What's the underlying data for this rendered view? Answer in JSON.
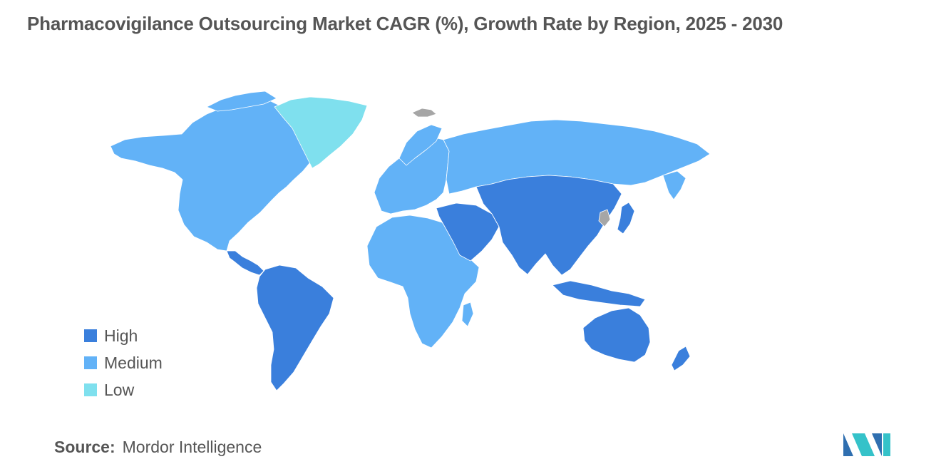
{
  "title": "Pharmacovigilance Outsourcing Market CAGR (%), Growth Rate by Region, 2025 - 2030",
  "colors": {
    "high": "#3a7fdc",
    "medium": "#62b2f7",
    "low": "#7fe0ee",
    "no_data": "#a6a6a6",
    "text": "#555555",
    "logo_dark": "#2f6fb0",
    "logo_light": "#35c2c9"
  },
  "legend": {
    "items": [
      {
        "label": "High",
        "color": "#3a7fdc"
      },
      {
        "label": "Medium",
        "color": "#62b2f7"
      },
      {
        "label": "Low",
        "color": "#7fe0ee"
      }
    ]
  },
  "map_data": {
    "type": "choropleth",
    "regions": [
      {
        "name": "North America",
        "level": "Medium"
      },
      {
        "name": "Greenland",
        "level": "Low"
      },
      {
        "name": "Europe",
        "level": "Medium"
      },
      {
        "name": "Russia",
        "level": "Medium"
      },
      {
        "name": "Africa",
        "level": "Medium"
      },
      {
        "name": "South America",
        "level": "High"
      },
      {
        "name": "Central America",
        "level": "High"
      },
      {
        "name": "Middle East",
        "level": "High"
      },
      {
        "name": "Asia",
        "level": "High"
      },
      {
        "name": "Japan",
        "level": "High"
      },
      {
        "name": "Australia",
        "level": "High"
      },
      {
        "name": "New Zealand",
        "level": "High"
      }
    ]
  },
  "source": {
    "label": "Source:",
    "value": "Mordor Intelligence"
  },
  "logo": {
    "icon": "mordor-intelligence-logo"
  }
}
